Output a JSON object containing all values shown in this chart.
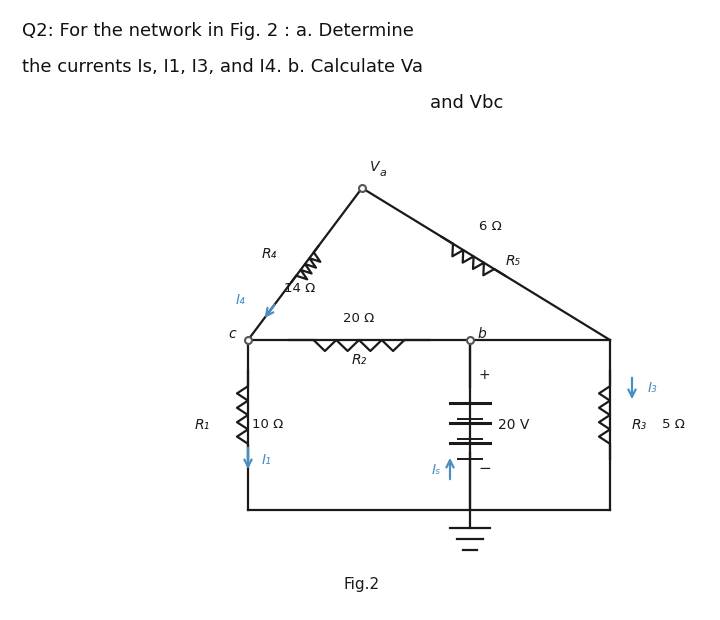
{
  "title_line1": "Q2: For the network in Fig. 2 : a. Determine",
  "title_line2": "the currents Is, I1, I3, and I4. b. Calculate Va",
  "title_line3": "and Vbc",
  "fig_label": "Fig.2",
  "bg_color": "#ffffff",
  "wire_color": "#1a1a1a",
  "arrow_color": "#4a8fc4",
  "R1_val": "10 Ω",
  "R2_val": "20 Ω",
  "R3_val": "5 Ω",
  "R4_val": "14 Ω",
  "R5_val": "6 Ω",
  "R1_label": "R₁",
  "R2_label": "R₂",
  "R3_label": "R₃",
  "R4_label": "R₄",
  "R5_label": "R₅",
  "V_label": "20 V",
  "Va_label": "V",
  "Va_sub": "a",
  "node_b_label": "b",
  "node_c_label": "c",
  "I1_label": "I₁",
  "I3_label": "I₃",
  "I4_label": "I₄",
  "Is_label": "Iₛ",
  "plus": "+",
  "minus": "−"
}
